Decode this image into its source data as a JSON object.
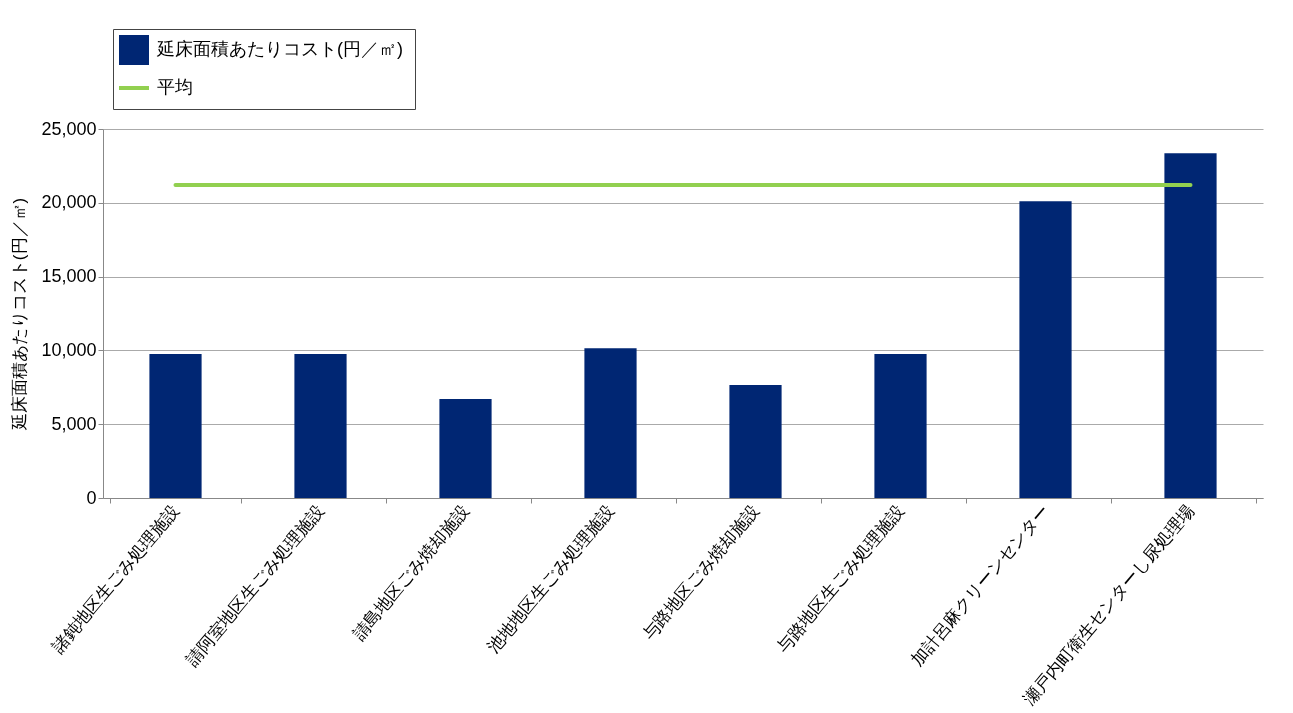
{
  "chart_data": {
    "type": "bar",
    "ylabel": "延床面積あたりコスト(円／㎡)",
    "categories": [
      "諸鈍地区生ごみ処理施設",
      "請阿室地区生ごみ処理施設",
      "請島地区ごみ焼却施設",
      "池地地区生ごみ処理施設",
      "与路地区ごみ焼却施設",
      "与路地区生ごみ処理施設",
      "加計呂麻クリーンセンター",
      "瀬戸内町衛生センターし尿処理場"
    ],
    "series": [
      {
        "name": "延床面積あたりコスト(円／㎡)",
        "color": "#002673",
        "values": [
          9750,
          9750,
          6700,
          10150,
          7650,
          9750,
          20100,
          23350
        ]
      },
      {
        "name": "平均",
        "type": "line",
        "color": "#92d050",
        "values": [
          21200,
          21200,
          21200,
          21200,
          21200,
          21200,
          21200,
          21200
        ]
      }
    ],
    "ylim": [
      0,
      25000
    ],
    "yticks": [
      {
        "value": 0,
        "label": "0"
      },
      {
        "value": 5000,
        "label": "5,000"
      },
      {
        "value": 10000,
        "label": "10,000"
      },
      {
        "value": 15000,
        "label": "15,000"
      },
      {
        "value": 20000,
        "label": "20,000"
      },
      {
        "value": 25000,
        "label": "25,000"
      }
    ],
    "grid": "y",
    "legend": "top left"
  }
}
